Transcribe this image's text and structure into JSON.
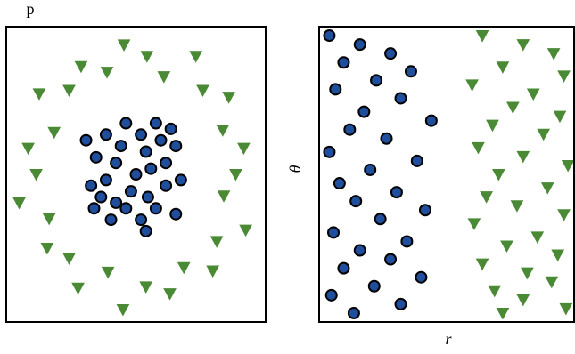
{
  "chart_data": [
    {
      "type": "scatter",
      "title": "p",
      "xlim": [
        -1.3,
        1.3
      ],
      "ylim": [
        -1.3,
        1.3
      ],
      "series": [
        {
          "color": "#1f4e9c",
          "marker": "circle",
          "x": [
            0.1,
            -0.2,
            0.3,
            -0.35,
            0.05,
            0.4,
            -0.1,
            0.2,
            -0.4,
            0.0,
            0.15,
            -0.25,
            0.35,
            -0.05,
            0.45,
            -0.45,
            0.25,
            -0.3,
            0.1,
            -0.15,
            0.3,
            -0.2,
            0.05,
            -0.5,
            0.2,
            -0.1,
            0.4,
            -0.3,
            0.12,
            -0.42
          ],
          "y": [
            0.2,
            0.1,
            -0.1,
            -0.2,
            -0.4,
            0.25,
            0.45,
            -0.3,
            0.15,
            0.0,
            0.05,
            -0.4,
            0.4,
            -0.15,
            -0.05,
            -0.1,
            0.3,
            0.35,
            -0.5,
            0.25,
            0.1,
            -0.25,
            0.35,
            0.3,
            0.45,
            -0.3,
            -0.35,
            -0.05,
            -0.2,
            -0.3
          ]
        },
        {
          "color": "#4a8a35",
          "marker": "triangle",
          "x": [
            1.0,
            1.08,
            0.87,
            0.93,
            0.67,
            0.6,
            0.28,
            0.11,
            -0.12,
            -0.29,
            -0.55,
            -0.67,
            -0.97,
            -0.82,
            -1.08,
            -1.0,
            -1.17,
            -0.87,
            -0.89,
            -0.67,
            -0.58,
            -0.28,
            -0.13,
            0.1,
            0.34,
            0.48,
            0.77,
            0.81,
            1.1,
            0.88
          ],
          "y": [
            0,
            0.23,
            0.39,
            0.68,
            0.74,
            1.04,
            0.86,
            1.04,
            1.14,
            0.9,
            0.95,
            0.74,
            0.71,
            0.37,
            0.23,
            0,
            -0.25,
            -0.39,
            -0.65,
            -0.74,
            -1.0,
            -0.86,
            -1.19,
            -0.99,
            -1.05,
            -0.82,
            -0.85,
            -0.59,
            -0.49,
            -0.19
          ]
        }
      ]
    },
    {
      "type": "scatter",
      "xlabel": "r",
      "ylabel": "θ",
      "xlim": [
        0,
        1.25
      ],
      "ylim": [
        -3.3,
        3.3
      ],
      "series": [
        {
          "color": "#1f4e9c",
          "marker": "circle",
          "x": [
            0.05,
            0.2,
            0.35,
            0.12,
            0.45,
            0.28,
            0.08,
            0.4,
            0.22,
            0.55,
            0.15,
            0.33,
            0.05,
            0.48,
            0.25,
            0.1,
            0.38,
            0.18,
            0.52,
            0.3,
            0.07,
            0.43,
            0.2,
            0.35,
            0.12,
            0.5,
            0.27,
            0.06,
            0.4,
            0.17
          ],
          "y": [
            3.1,
            2.9,
            2.7,
            2.5,
            2.3,
            2.1,
            1.9,
            1.7,
            1.4,
            1.2,
            1.0,
            0.8,
            0.5,
            0.3,
            0.1,
            -0.2,
            -0.4,
            -0.6,
            -0.8,
            -1.0,
            -1.3,
            -1.5,
            -1.7,
            -1.9,
            -2.1,
            -2.3,
            -2.5,
            -2.7,
            -2.9,
            -3.1
          ]
        },
        {
          "color": "#4a8a35",
          "marker": "triangle",
          "x": [
            0.8,
            1.0,
            1.15,
            0.9,
            1.2,
            0.75,
            1.05,
            0.95,
            1.18,
            0.85,
            1.1,
            0.78,
            1.0,
            1.22,
            0.88,
            1.12,
            0.82,
            0.97,
            1.2,
            0.76,
            1.07,
            0.92,
            1.17,
            0.8,
            1.02,
            1.14,
            0.86,
            1.0,
            1.21,
            0.9
          ],
          "y": [
            3.1,
            2.9,
            2.7,
            2.4,
            2.2,
            2.0,
            1.8,
            1.5,
            1.3,
            1.1,
            0.9,
            0.6,
            0.4,
            0.2,
            0.0,
            -0.3,
            -0.5,
            -0.7,
            -0.9,
            -1.1,
            -1.4,
            -1.6,
            -1.8,
            -2.0,
            -2.2,
            -2.4,
            -2.6,
            -2.8,
            -3.0,
            -3.1
          ]
        }
      ]
    }
  ]
}
